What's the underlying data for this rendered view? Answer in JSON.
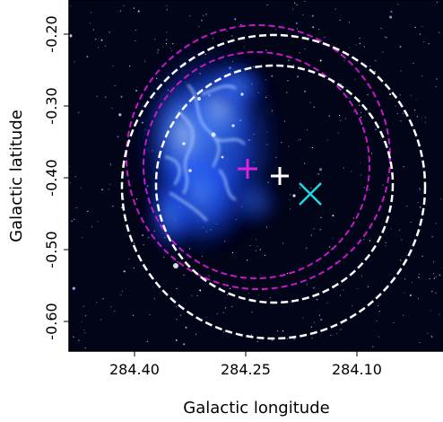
{
  "axes": {
    "xlabel": "Galactic longitude",
    "ylabel": "Galactic latitude",
    "x_ticks": [
      "284.40",
      "284.25",
      "284.10"
    ],
    "y_ticks": [
      "-0.20",
      "-0.30",
      "-0.40",
      "-0.50",
      "-0.60"
    ]
  },
  "image": {
    "description_colormap": "blue infrared nebula on black star field",
    "background_color": "#020418",
    "nebula_color": "#1f56ff"
  },
  "markers": [
    {
      "name": "magenta-plus",
      "symbol": "+",
      "color": "#e020e0"
    },
    {
      "name": "white-plus",
      "symbol": "+",
      "color": "#ffffff"
    },
    {
      "name": "cyan-cross",
      "symbol": "x",
      "color": "#20d8e0"
    }
  ],
  "circles": [
    {
      "name": "magenta-outer-circle",
      "color": "#c818c8",
      "style": "dashed"
    },
    {
      "name": "magenta-inner-circle",
      "color": "#c818c8",
      "style": "dashed"
    },
    {
      "name": "white-outer-circle",
      "color": "#ffffff",
      "style": "dashed"
    },
    {
      "name": "white-inner-circle",
      "color": "#ffffff",
      "style": "dashed"
    }
  ]
}
